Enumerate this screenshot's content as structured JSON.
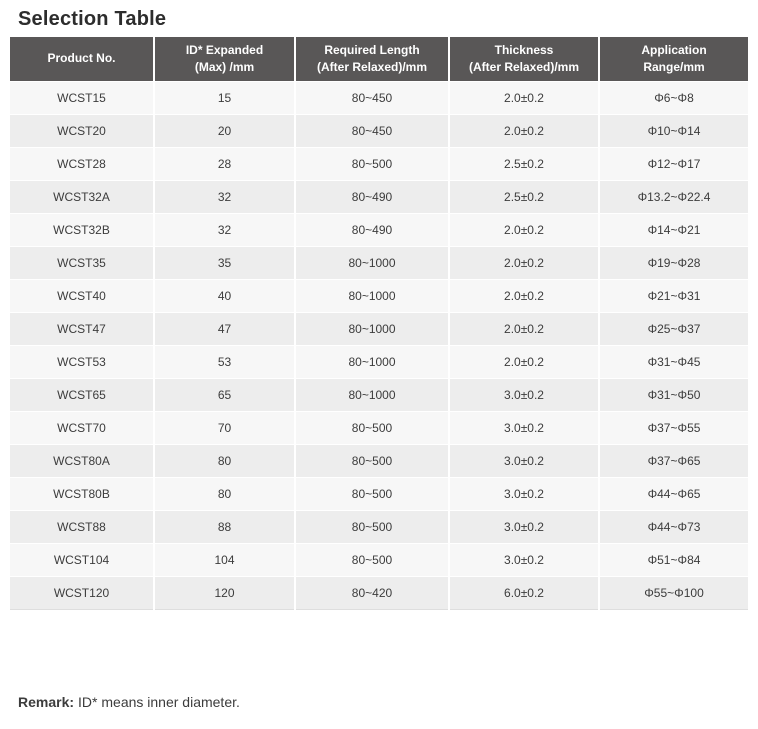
{
  "page": {
    "title": "Selection Table",
    "remark_label": "Remark:",
    "remark_text": "ID* means inner diameter."
  },
  "colors": {
    "header_bg": "#595757",
    "header_text": "#ffffff",
    "row_odd_bg": "#f7f7f7",
    "row_even_bg": "#ededed",
    "body_text": "#3c3c3c",
    "title_text": "#2d2d2d"
  },
  "table": {
    "columns": [
      "Product No.",
      "ID* Expanded\n(Max) /mm",
      "Required Length\n(After Relaxed)/mm",
      "Thickness\n(After Relaxed)/mm",
      "Application\nRange/mm"
    ],
    "rows": [
      [
        "WCST15",
        "15",
        "80~450",
        "2.0±0.2",
        "Φ6~Φ8"
      ],
      [
        "WCST20",
        "20",
        "80~450",
        "2.0±0.2",
        "Φ10~Φ14"
      ],
      [
        "WCST28",
        "28",
        "80~500",
        "2.5±0.2",
        "Φ12~Φ17"
      ],
      [
        "WCST32A",
        "32",
        "80~490",
        "2.5±0.2",
        "Φ13.2~Φ22.4"
      ],
      [
        "WCST32B",
        "32",
        "80~490",
        "2.0±0.2",
        "Φ14~Φ21"
      ],
      [
        "WCST35",
        "35",
        "80~1000",
        "2.0±0.2",
        "Φ19~Φ28"
      ],
      [
        "WCST40",
        "40",
        "80~1000",
        "2.0±0.2",
        "Φ21~Φ31"
      ],
      [
        "WCST47",
        "47",
        "80~1000",
        "2.0±0.2",
        "Φ25~Φ37"
      ],
      [
        "WCST53",
        "53",
        "80~1000",
        "2.0±0.2",
        "Φ31~Φ45"
      ],
      [
        "WCST65",
        "65",
        "80~1000",
        "3.0±0.2",
        "Φ31~Φ50"
      ],
      [
        "WCST70",
        "70",
        "80~500",
        "3.0±0.2",
        "Φ37~Φ55"
      ],
      [
        "WCST80A",
        "80",
        "80~500",
        "3.0±0.2",
        "Φ37~Φ65"
      ],
      [
        "WCST80B",
        "80",
        "80~500",
        "3.0±0.2",
        "Φ44~Φ65"
      ],
      [
        "WCST88",
        "88",
        "80~500",
        "3.0±0.2",
        "Φ44~Φ73"
      ],
      [
        "WCST104",
        "104",
        "80~500",
        "3.0±0.2",
        "Φ51~Φ84"
      ],
      [
        "WCST120",
        "120",
        "80~420",
        "6.0±0.2",
        "Φ55~Φ100"
      ]
    ]
  }
}
